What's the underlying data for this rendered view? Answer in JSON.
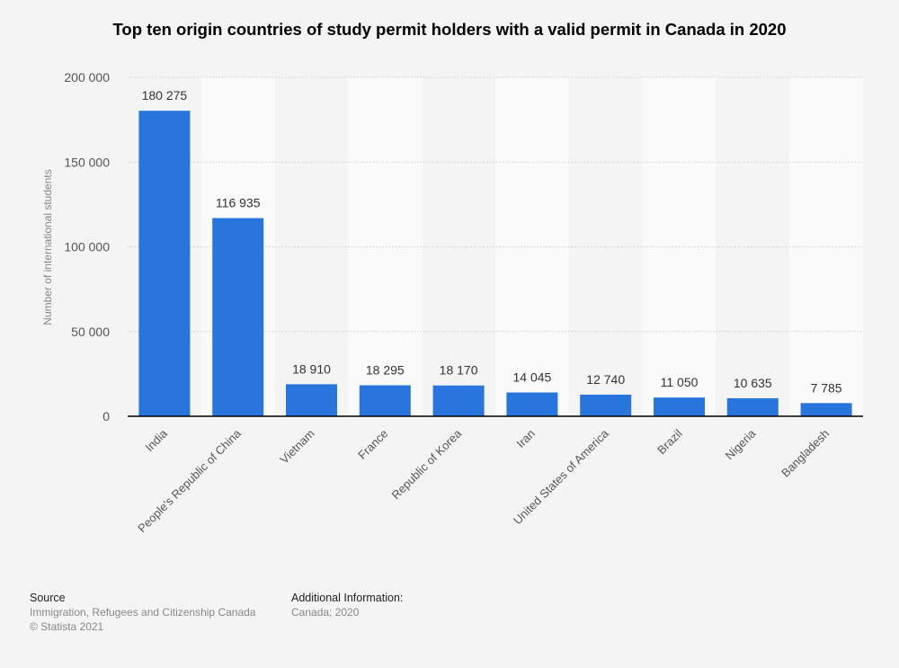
{
  "chart_data": {
    "type": "bar",
    "title": "Top ten origin countries of study permit holders with a valid permit in Canada in 2020",
    "xlabel": "",
    "ylabel": "Number of international students",
    "categories": [
      "India",
      "People's Republic of China",
      "Vietnam",
      "France",
      "Republic of Korea",
      "Iran",
      "United States of America",
      "Brazil",
      "Nigeria",
      "Bangladesh"
    ],
    "values": [
      180275,
      116935,
      18910,
      18295,
      18170,
      14045,
      12740,
      11050,
      10635,
      7785
    ],
    "data_labels": [
      "180 275",
      "116 935",
      "18 910",
      "18 295",
      "18 170",
      "14 045",
      "12 740",
      "11 050",
      "10 635",
      "7 785"
    ],
    "ylim": [
      0,
      200000
    ],
    "yticks": [
      0,
      50000,
      100000,
      150000,
      200000
    ],
    "ytick_labels": [
      "0",
      "50 000",
      "100 000",
      "150 000",
      "200 000"
    ],
    "grid": true,
    "bar_color": "#2876dd"
  },
  "footer": {
    "source_heading": "Source",
    "source_text": "Immigration, Refugees and Citizenship Canada",
    "copyright": "© Statista 2021",
    "info_heading": "Additional Information:",
    "info_text": "Canada; 2020"
  }
}
